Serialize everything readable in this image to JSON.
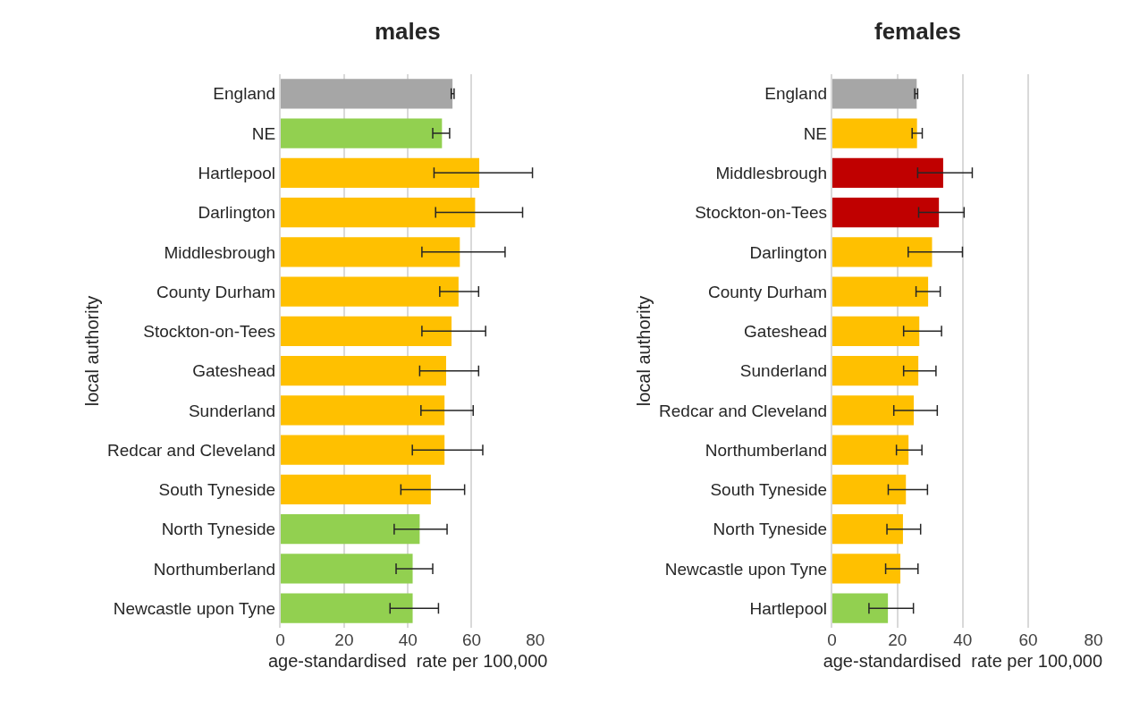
{
  "chart_data": [
    {
      "type": "bar",
      "orientation": "horizontal",
      "title": "males",
      "xlabel": "age-standardised  rate per 100,000",
      "ylabel": "local authority",
      "categories": [
        "England",
        "NE",
        "Hartlepool",
        "Darlington",
        "Middlesbrough",
        "County Durham",
        "Stockton-on-Tees",
        "Gateshead",
        "Sunderland",
        "Redcar and Cleveland",
        "South Tyneside",
        "North Tyneside",
        "Northumberland",
        "Newcastle upon Tyne"
      ],
      "values": [
        54.0,
        50.7,
        62.4,
        61.1,
        56.3,
        55.9,
        53.7,
        52.0,
        51.5,
        51.5,
        47.2,
        43.7,
        41.5,
        41.5
      ],
      "errors": [
        [
          53.6,
          54.5
        ],
        [
          47.8,
          53.1
        ],
        [
          48.2,
          79.1
        ],
        [
          48.7,
          76.0
        ],
        [
          44.4,
          70.5
        ],
        [
          50.0,
          62.2
        ],
        [
          44.4,
          64.4
        ],
        [
          43.7,
          62.2
        ],
        [
          44.1,
          60.5
        ],
        [
          41.4,
          63.5
        ],
        [
          37.8,
          57.8
        ],
        [
          35.7,
          52.3
        ],
        [
          36.3,
          47.8
        ],
        [
          34.4,
          49.6
        ]
      ],
      "colors": [
        "#a6a6a6",
        "#92d050",
        "#ffc000",
        "#ffc000",
        "#ffc000",
        "#ffc000",
        "#ffc000",
        "#ffc000",
        "#ffc000",
        "#ffc000",
        "#ffc000",
        "#92d050",
        "#92d050",
        "#92d050"
      ],
      "xlim": [
        0,
        80
      ],
      "xticks": [
        0,
        20,
        40,
        60,
        80
      ],
      "grid": "x"
    },
    {
      "type": "bar",
      "orientation": "horizontal",
      "title": "females",
      "xlabel": "age-standardised  rate per 100,000",
      "ylabel": "local authority",
      "categories": [
        "England",
        "NE",
        "Middlesbrough",
        "Stockton-on-Tees",
        "Darlington",
        "County Durham",
        "Gateshead",
        "Sunderland",
        "Redcar and Cleveland",
        "Northumberland",
        "South Tyneside",
        "North Tyneside",
        "Newcastle upon Tyne",
        "Hartlepool"
      ],
      "values": [
        25.9,
        26.0,
        34.0,
        32.7,
        30.6,
        29.4,
        26.7,
        26.4,
        25.0,
        23.4,
        22.6,
        21.7,
        20.9,
        17.1
      ],
      "errors": [
        [
          25.3,
          26.2
        ],
        [
          24.5,
          27.6
        ],
        [
          26.2,
          42.9
        ],
        [
          26.5,
          40.4
        ],
        [
          23.3,
          39.9
        ],
        [
          25.7,
          33.1
        ],
        [
          21.9,
          33.5
        ],
        [
          21.9,
          31.8
        ],
        [
          18.9,
          32.2
        ],
        [
          19.7,
          27.5
        ],
        [
          17.2,
          29.2
        ],
        [
          16.8,
          27.1
        ],
        [
          16.4,
          26.3
        ],
        [
          11.3,
          24.9
        ]
      ],
      "colors": [
        "#a6a6a6",
        "#ffc000",
        "#c00000",
        "#c00000",
        "#ffc000",
        "#ffc000",
        "#ffc000",
        "#ffc000",
        "#ffc000",
        "#ffc000",
        "#ffc000",
        "#ffc000",
        "#ffc000",
        "#92d050"
      ],
      "xlim": [
        0,
        80
      ],
      "xticks": [
        0,
        20,
        40,
        60,
        80
      ],
      "grid": "x"
    }
  ]
}
